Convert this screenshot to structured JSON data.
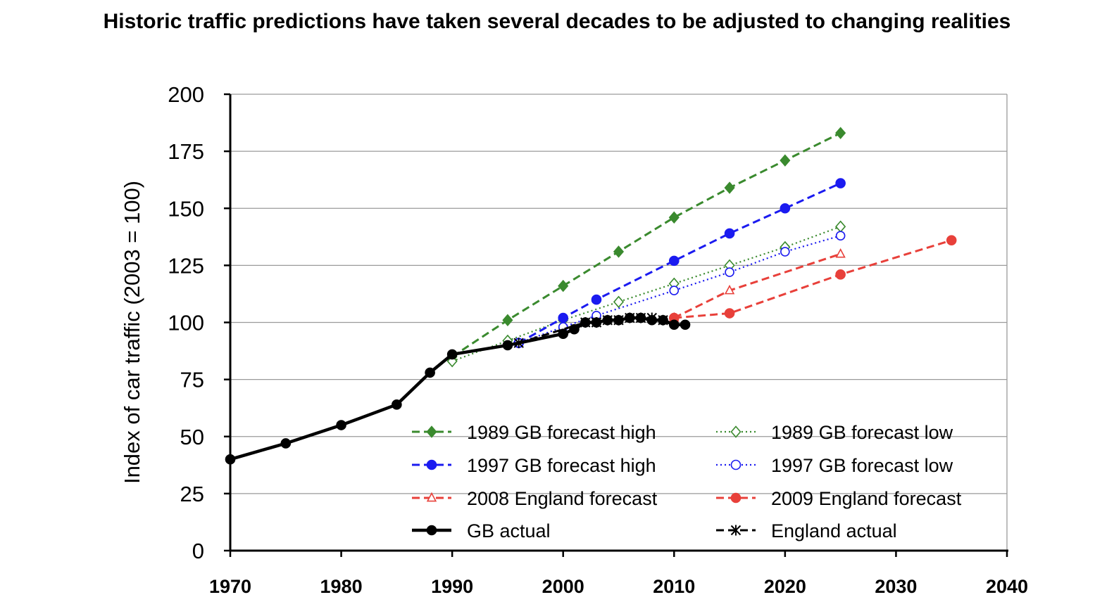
{
  "page_title": "Historic traffic predictions have taken several decades to be adjusted to changing realities",
  "chart_data": {
    "type": "line",
    "title": "",
    "xlabel": "",
    "ylabel": "Index of car traffic (2003 = 100)",
    "xlim": [
      1970,
      2040
    ],
    "ylim": [
      0,
      200
    ],
    "xticks": [
      1970,
      1980,
      1990,
      2000,
      2010,
      2020,
      2030,
      2040
    ],
    "yticks": [
      0,
      25,
      50,
      75,
      100,
      125,
      150,
      175,
      200
    ],
    "grid": "horizontal",
    "legend_position": "bottom-right",
    "series": [
      {
        "name": "1989 GB forecast high",
        "color": "#3a8a2e",
        "dash": "dashed",
        "marker": "diamond-filled",
        "x": [
          1990,
          1995,
          2000,
          2005,
          2010,
          2015,
          2020,
          2025
        ],
        "y": [
          85,
          101,
          116,
          131,
          146,
          159,
          171,
          183
        ]
      },
      {
        "name": "1989 GB forecast low",
        "color": "#3a8a2e",
        "dash": "dotted",
        "marker": "diamond-open",
        "x": [
          1990,
          1995,
          2000,
          2005,
          2010,
          2015,
          2020,
          2025
        ],
        "y": [
          83,
          92,
          101,
          109,
          117,
          125,
          133,
          142
        ]
      },
      {
        "name": "1997 GB forecast high",
        "color": "#1b1bf0",
        "dash": "dashed",
        "marker": "circle-filled",
        "x": [
          1996,
          2000,
          2003,
          2010,
          2015,
          2020,
          2025
        ],
        "y": [
          91,
          102,
          110,
          127,
          139,
          150,
          161
        ]
      },
      {
        "name": "1997 GB forecast low",
        "color": "#1b1bf0",
        "dash": "dotted",
        "marker": "circle-open",
        "x": [
          1996,
          2000,
          2003,
          2010,
          2015,
          2020,
          2025
        ],
        "y": [
          91,
          98,
          103,
          114,
          122,
          131,
          138
        ]
      },
      {
        "name": "2008 England forecast",
        "color": "#e8403a",
        "dash": "dashed",
        "marker": "triangle-open",
        "x": [
          2010,
          2015,
          2025
        ],
        "y": [
          102,
          114,
          130
        ]
      },
      {
        "name": "2009 England forecast",
        "color": "#e8403a",
        "dash": "dashed",
        "marker": "circle-filled",
        "x": [
          2010,
          2015,
          2025,
          2035
        ],
        "y": [
          102,
          104,
          121,
          136
        ]
      },
      {
        "name": "GB actual",
        "color": "#000000",
        "dash": "solid",
        "marker": "circle-filled",
        "x": [
          1970,
          1975,
          1980,
          1985,
          1988,
          1990,
          1995,
          2000,
          2001,
          2002,
          2003,
          2004,
          2005,
          2006,
          2007,
          2008,
          2009,
          2010,
          2011
        ],
        "y": [
          40,
          47,
          55,
          64,
          78,
          86,
          90,
          95,
          97,
          100,
          100,
          101,
          101,
          102,
          102,
          101,
          101,
          99,
          99
        ]
      },
      {
        "name": "England actual",
        "color": "#000000",
        "dash": "dashed",
        "marker": "star",
        "x": [
          1996,
          2002,
          2003,
          2004,
          2005,
          2006,
          2007,
          2008,
          2009
        ],
        "y": [
          91,
          100,
          100,
          101,
          101,
          102,
          102,
          102,
          101
        ]
      }
    ]
  }
}
